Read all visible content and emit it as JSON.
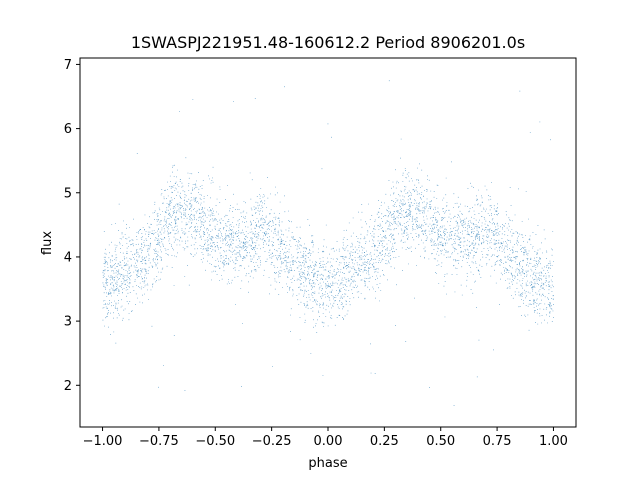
{
  "chart_data": {
    "type": "scatter",
    "title": "1SWASPJ221951.48-160612.2 Period 8906201.0s",
    "xlabel": "phase",
    "ylabel": "flux",
    "xlim": [
      -1.1,
      1.1
    ],
    "ylim": [
      1.35,
      7.1
    ],
    "x_ticks": [
      -1.0,
      -0.75,
      -0.5,
      -0.25,
      0.0,
      0.25,
      0.5,
      0.75,
      1.0
    ],
    "x_tick_labels": [
      "−1.00",
      "−0.75",
      "−0.50",
      "−0.25",
      "0.00",
      "0.25",
      "0.50",
      "0.75",
      "1.00"
    ],
    "y_ticks": [
      2,
      3,
      4,
      5,
      6,
      7
    ],
    "y_tick_labels": [
      "2",
      "3",
      "4",
      "5",
      "6",
      "7"
    ],
    "grid": false,
    "series": [
      {
        "color": "#1f77b4",
        "marker_size": 0.5,
        "points_per_unit_phase": 8000,
        "phase_range": [
          -1.0,
          1.0
        ],
        "flux_profile": {
          "x": [
            0.0,
            0.05,
            0.1,
            0.15,
            0.2,
            0.25,
            0.3,
            0.35,
            0.4,
            0.45,
            0.5,
            0.55,
            0.6,
            0.65,
            0.7,
            0.75,
            0.8,
            0.85,
            0.9,
            0.95,
            1.0
          ],
          "y": [
            3.5,
            3.6,
            3.8,
            3.95,
            4.0,
            4.3,
            4.65,
            4.75,
            4.7,
            4.5,
            4.3,
            4.25,
            4.2,
            4.3,
            4.45,
            4.3,
            4.05,
            3.85,
            3.75,
            3.6,
            3.5
          ]
        },
        "flux_scatter": 0.32,
        "outlier_fraction": 0.015,
        "flux_outlier_range": [
          1.6,
          6.8
        ]
      }
    ]
  }
}
